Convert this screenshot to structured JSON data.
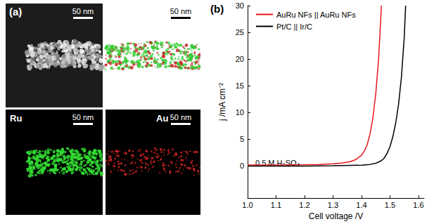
{
  "panel_a": {
    "label": "(a)",
    "tiles": [
      {
        "scale_bar": "50 nm"
      },
      {
        "scale_bar": "50 nm",
        "colors": [
          "#33cc33",
          "#cc3333"
        ]
      },
      {
        "label": "Ru",
        "scale_bar": "50 nm",
        "color": "#33dd33"
      },
      {
        "label": "Au",
        "scale_bar": "50 nm",
        "color": "#cc2222"
      }
    ]
  },
  "chart_data": {
    "type": "line",
    "panel_label": "(b)",
    "x_label": "Cell voltage /V",
    "y_label": "j /mA cm⁻²",
    "annotations": [
      "0.5 M H₂SO₄"
    ],
    "xlim": [
      1.0,
      1.62
    ],
    "xticks": [
      {
        "value": 1.0,
        "label": "1.0"
      },
      1.1,
      1.2,
      1.3,
      1.4,
      1.5,
      1.6
    ],
    "ylim": [
      -6,
      30
    ],
    "yticks": [
      0,
      5,
      10,
      15,
      20,
      25,
      30
    ],
    "grid": false,
    "legend": "upper left",
    "series": [
      {
        "name": "AuRu NFs || AuRu NFs",
        "color": "#e8141e",
        "x": [
          1.0,
          1.1,
          1.2,
          1.25,
          1.3,
          1.33,
          1.36,
          1.38,
          1.4,
          1.41,
          1.42,
          1.43,
          1.44,
          1.45,
          1.46,
          1.47
        ],
        "values": [
          0.2,
          0.2,
          0.25,
          0.3,
          0.4,
          0.55,
          0.8,
          1.2,
          2.0,
          2.8,
          4.0,
          6.0,
          9.0,
          13.5,
          20.0,
          30.0
        ]
      },
      {
        "name": "Pt/C || Ir/C",
        "color": "#000000",
        "x": [
          1.0,
          1.1,
          1.2,
          1.3,
          1.4,
          1.43,
          1.45,
          1.47,
          1.48,
          1.49,
          1.5,
          1.51,
          1.52,
          1.53,
          1.54,
          1.55,
          1.555
        ],
        "values": [
          0.0,
          0.0,
          0.0,
          0.05,
          0.15,
          0.3,
          0.5,
          1.0,
          1.5,
          2.4,
          3.6,
          5.5,
          8.0,
          11.5,
          16.5,
          24.0,
          30.0
        ]
      }
    ]
  }
}
